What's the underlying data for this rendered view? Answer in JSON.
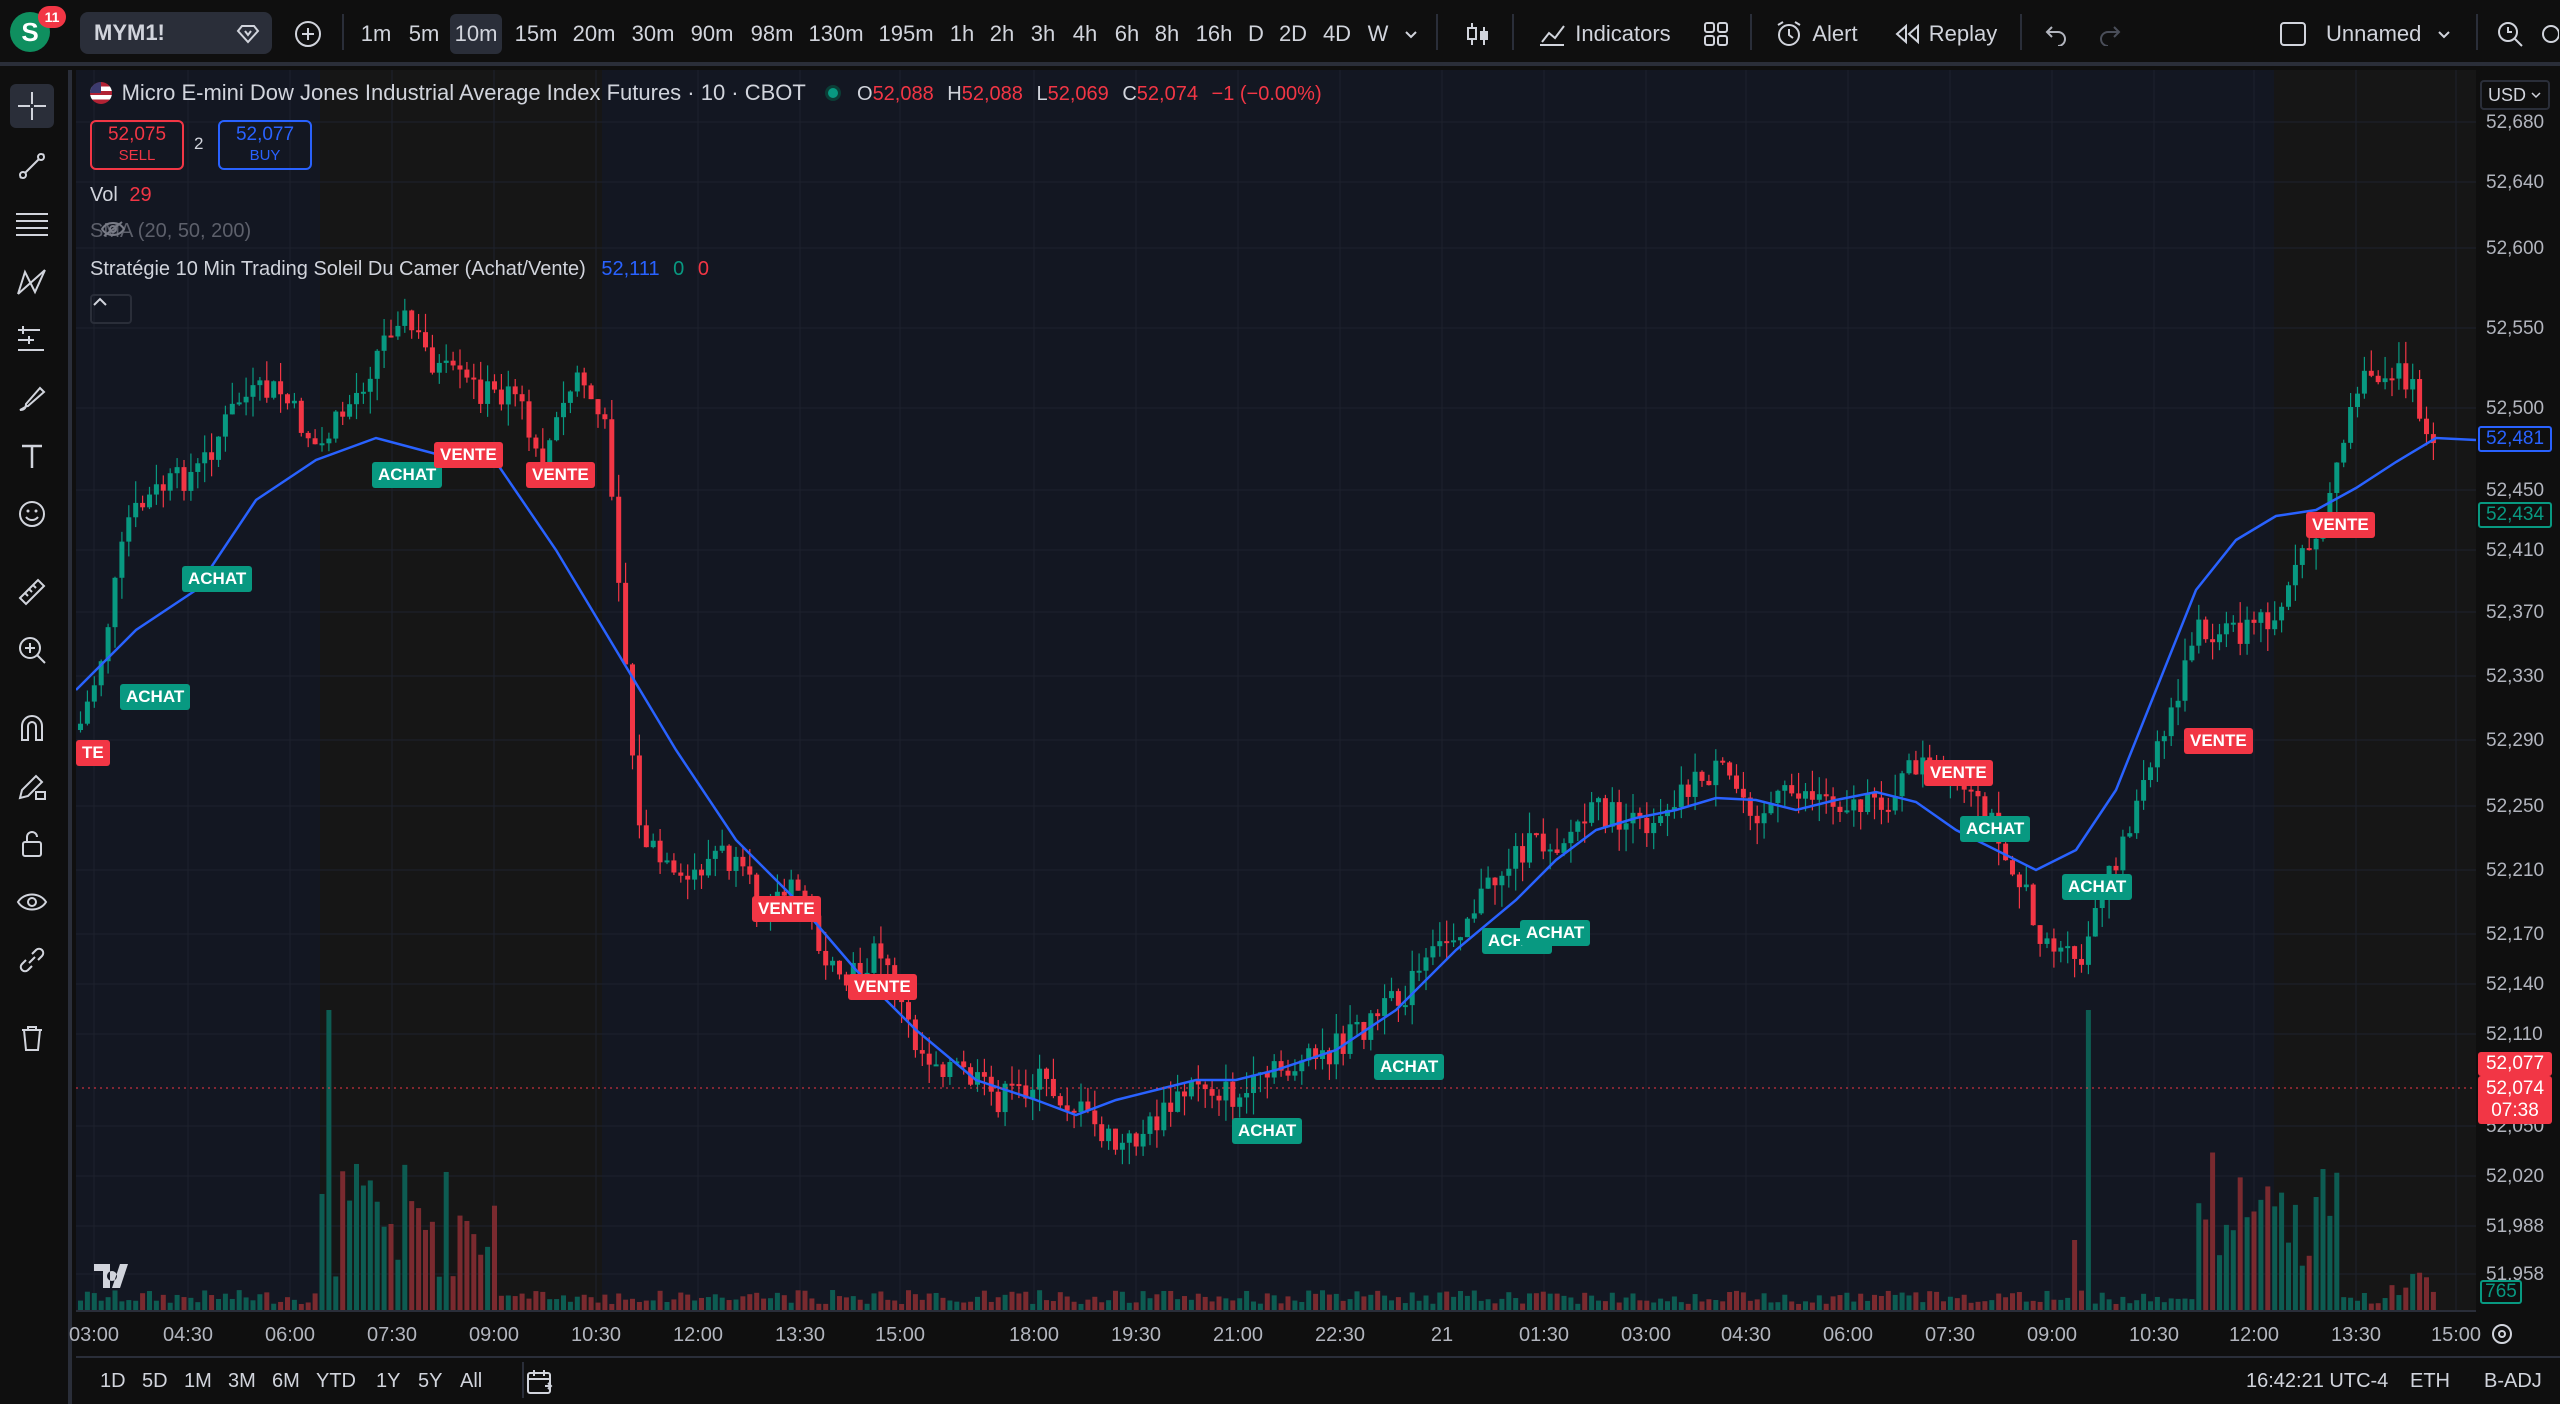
{
  "topbar": {
    "notification_count": "11",
    "avatar_letter": "S",
    "symbol": "MYM1!",
    "intervals": [
      "1m",
      "5m",
      "10m",
      "15m",
      "20m",
      "30m",
      "90m",
      "98m",
      "130m",
      "195m",
      "1h",
      "2h",
      "3h",
      "4h",
      "6h",
      "8h",
      "16h",
      "D",
      "2D",
      "4D",
      "W"
    ],
    "active_interval": "10m",
    "indicators_label": "Indicators",
    "alert_label": "Alert",
    "replay_label": "Replay",
    "layout_name": "Unnamed"
  },
  "legend": {
    "title": "Micro E-mini Dow Jones Industrial Average Index Futures · 10 · CBOT",
    "o_label": "O",
    "o_value": "52,088",
    "h_label": "H",
    "h_value": "52,088",
    "l_label": "L",
    "l_value": "52,069",
    "c_label": "C",
    "c_value": "52,074",
    "change": "−1 (−0.00%)",
    "sell_price": "52,075",
    "sell_label": "SELL",
    "spread": "2",
    "buy_price": "52,077",
    "buy_label": "BUY",
    "vol_label": "Vol",
    "vol_value": "29",
    "sma_label": "SMA (20, 50, 200)",
    "strategy_label": "Stratégie 10 Min Trading Soleil Du Camer (Achat/Vente)",
    "strategy_value": "52,111",
    "strategy_v2": "0",
    "strategy_v3": "0"
  },
  "price_axis": {
    "currency": "USD",
    "ticks": [
      "52,680",
      "52,640",
      "52,600",
      "52,550",
      "52,500",
      "52,450",
      "52,410",
      "52,370",
      "52,330",
      "52,290",
      "52,250",
      "52,210",
      "52,170",
      "52,140",
      "52,110",
      "52,077",
      "52,050",
      "52,020",
      "51,988",
      "51,958"
    ],
    "ma_tag": "52,481",
    "green_tag": "52,434",
    "buy_tag": "52,077",
    "last_tag": "52,074",
    "countdown": "07:38",
    "volume_tag": "765"
  },
  "time_axis": {
    "labels": [
      "03:00",
      "04:30",
      "06:00",
      "07:30",
      "09:00",
      "10:30",
      "12:00",
      "13:30",
      "15:00",
      "18:00",
      "19:30",
      "21:00",
      "22:30",
      "21",
      "01:30",
      "03:00",
      "04:30",
      "06:00",
      "07:30",
      "09:00",
      "10:30",
      "12:00",
      "13:30",
      "15:00"
    ]
  },
  "bottombar": {
    "ranges": [
      "1D",
      "5D",
      "1M",
      "3M",
      "6M",
      "YTD",
      "1Y",
      "5Y",
      "All"
    ],
    "clock": "16:42:21 UTC-4",
    "session": "ETH",
    "adj": "B-ADJ"
  },
  "signals": [
    {
      "text": "TE",
      "type": "sell"
    },
    {
      "text": "ACHAT",
      "type": "buy"
    },
    {
      "text": "ACHAT",
      "type": "buy"
    },
    {
      "text": "ACHAT",
      "type": "buy"
    },
    {
      "text": "VENTE",
      "type": "sell"
    },
    {
      "text": "VENTE",
      "type": "sell"
    },
    {
      "text": "VENTE",
      "type": "sell"
    },
    {
      "text": "VENTE",
      "type": "sell"
    },
    {
      "text": "ACHAT",
      "type": "buy"
    },
    {
      "text": "ACHAT",
      "type": "buy"
    },
    {
      "text": "ACHAT",
      "type": "buy"
    },
    {
      "text": "ACHAT",
      "type": "buy"
    },
    {
      "text": "VENTE",
      "type": "sell"
    },
    {
      "text": "VENTE",
      "type": "sell"
    },
    {
      "text": "ACHAT",
      "type": "buy"
    },
    {
      "text": "ACHAT",
      "type": "buy"
    },
    {
      "text": "VENTE",
      "type": "sell"
    }
  ],
  "colors": {
    "up": "#089981",
    "down": "#f23645",
    "ma": "#2962ff",
    "session_bg": "#131722"
  },
  "chart_data": {
    "type": "candlestick",
    "y_range": [
      51950,
      52690
    ],
    "ma_line_color": "#2962ff",
    "series_hint": "10-minute OHLC candles with volume histogram and strategy MA line"
  }
}
